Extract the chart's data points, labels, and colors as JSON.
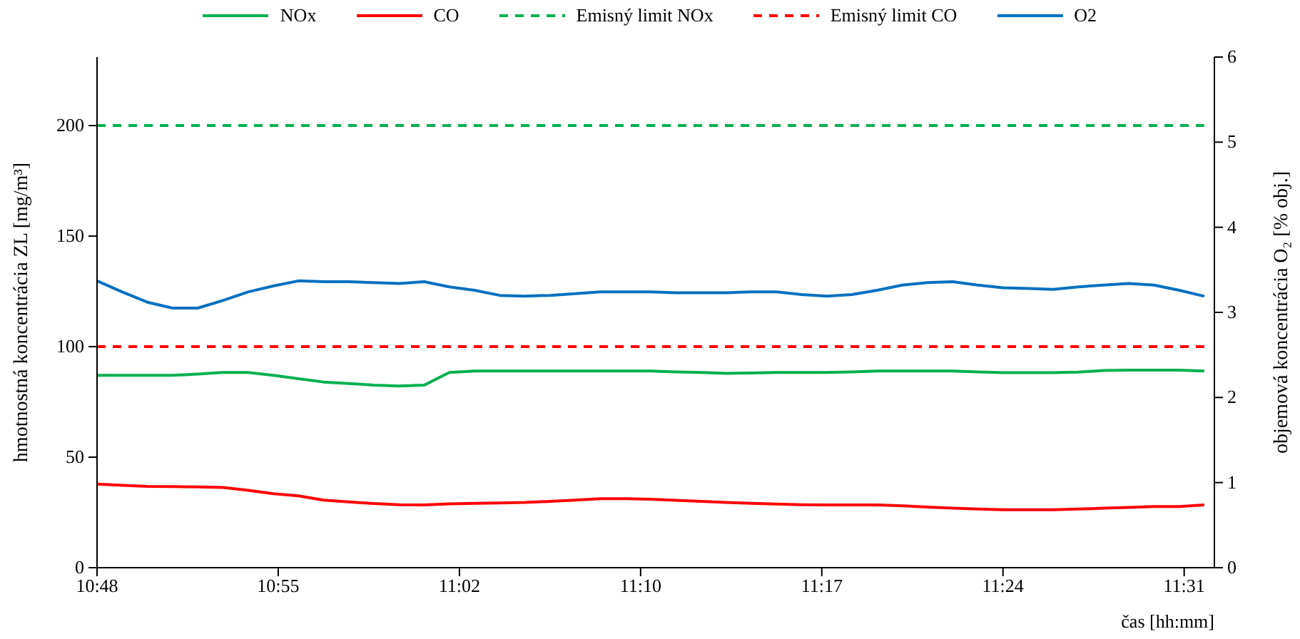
{
  "chart_data": {
    "type": "line",
    "xlabel": "čas [hh:mm]",
    "ylabel": "hmotnostná koncentrácia ZL  [mg/m³]",
    "y2label": "objemová koncentrácia O₂ [% obj.]",
    "x": [
      10.8,
      10.8167,
      10.8333,
      10.85,
      10.8667,
      10.8833,
      10.9,
      10.9167,
      10.9333,
      10.95,
      10.9667,
      10.9833,
      11,
      11.0167,
      11.0333,
      11.05,
      11.0667,
      11.0833,
      11.1,
      11.1167,
      11.1333,
      11.15,
      11.1667,
      11.1833,
      11.2,
      11.2167,
      11.2333,
      11.25,
      11.2667,
      11.2833,
      11.3,
      11.3167,
      11.3333,
      11.35,
      11.3667,
      11.3833,
      11.4,
      11.4167,
      11.4333,
      11.45,
      11.4667,
      11.4833,
      11.5,
      11.5167,
      11.5333
    ],
    "series": [
      {
        "name": "NOx",
        "color": "#00b050",
        "values": [
          87,
          87,
          87,
          87,
          87.6,
          88.3,
          88.3,
          87,
          85.5,
          84,
          83.3,
          82.6,
          82.2,
          82.6,
          88.3,
          89,
          89,
          89,
          89,
          89,
          89,
          89,
          89,
          88.6,
          88.3,
          87.9,
          88.1,
          88.3,
          88.3,
          88.3,
          88.6,
          89,
          89,
          89,
          89,
          88.6,
          88.2,
          88.2,
          88.2,
          88.5,
          89.2,
          89.4,
          89.4,
          89.4,
          89
        ]
      },
      {
        "name": "CO",
        "color": "#ff0000",
        "values": [
          37.8,
          37.3,
          36.8,
          36.7,
          36.5,
          36.3,
          35,
          33.5,
          32.5,
          30.6,
          29.8,
          29,
          28.5,
          28.4,
          28.9,
          29.1,
          29.3,
          29.5,
          30,
          30.6,
          31.2,
          31.2,
          31,
          30.5,
          30,
          29.5,
          29.1,
          28.8,
          28.5,
          28.4,
          28.4,
          28.4,
          28,
          27.4,
          26.9,
          26.5,
          26.2,
          26.2,
          26.2,
          26.5,
          26.9,
          27.3,
          27.7,
          27.7,
          28.4
        ]
      },
      {
        "name": "Emisný limit NOx",
        "color": "#00b050",
        "line_style": "dashed",
        "values": [
          200,
          200,
          200,
          200,
          200,
          200,
          200,
          200,
          200,
          200,
          200,
          200,
          200,
          200,
          200,
          200,
          200,
          200,
          200,
          200,
          200,
          200,
          200,
          200,
          200,
          200,
          200,
          200,
          200,
          200,
          200,
          200,
          200,
          200,
          200,
          200,
          200,
          200,
          200,
          200,
          200,
          200,
          200,
          200,
          200
        ]
      },
      {
        "name": "Emisný limit CO",
        "color": "#ff0000",
        "line_style": "dashed",
        "values": [
          100,
          100,
          100,
          100,
          100,
          100,
          100,
          100,
          100,
          100,
          100,
          100,
          100,
          100,
          100,
          100,
          100,
          100,
          100,
          100,
          100,
          100,
          100,
          100,
          100,
          100,
          100,
          100,
          100,
          100,
          100,
          100,
          100,
          100,
          100,
          100,
          100,
          100,
          100,
          100,
          100,
          100,
          100,
          100,
          100
        ]
      },
      {
        "name": "O2",
        "color": "#0070c0",
        "axis": "y2",
        "values": [
          3.37,
          3.24,
          3.12,
          3.05,
          3.05,
          3.14,
          3.24,
          3.31,
          3.37,
          3.36,
          3.36,
          3.35,
          3.34,
          3.36,
          3.3,
          3.26,
          3.2,
          3.19,
          3.2,
          3.22,
          3.24,
          3.24,
          3.24,
          3.23,
          3.23,
          3.23,
          3.24,
          3.24,
          3.21,
          3.19,
          3.21,
          3.26,
          3.32,
          3.35,
          3.36,
          3.32,
          3.29,
          3.28,
          3.27,
          3.3,
          3.32,
          3.34,
          3.32,
          3.26,
          3.19
        ]
      }
    ],
    "xlim": [
      10.8,
      11.54
    ],
    "xticks": [
      {
        "value": 10.8,
        "label": "10:48"
      },
      {
        "value": 10.92,
        "label": "10:55"
      },
      {
        "value": 11.04,
        "label": "11:02"
      },
      {
        "value": 11.16,
        "label": "11:10"
      },
      {
        "value": 11.28,
        "label": "11:17"
      },
      {
        "value": 11.4,
        "label": "11:24"
      },
      {
        "value": 11.52,
        "label": "11:31"
      }
    ],
    "ylim": [
      0,
      231
    ],
    "yticks": [
      0,
      50,
      100,
      150,
      200
    ],
    "y2lim": [
      0,
      6
    ],
    "y2ticks": [
      0,
      1,
      2,
      3,
      4,
      5,
      6
    ],
    "grid": false,
    "legend": "top",
    "marker": "none",
    "line_style": "solid"
  }
}
